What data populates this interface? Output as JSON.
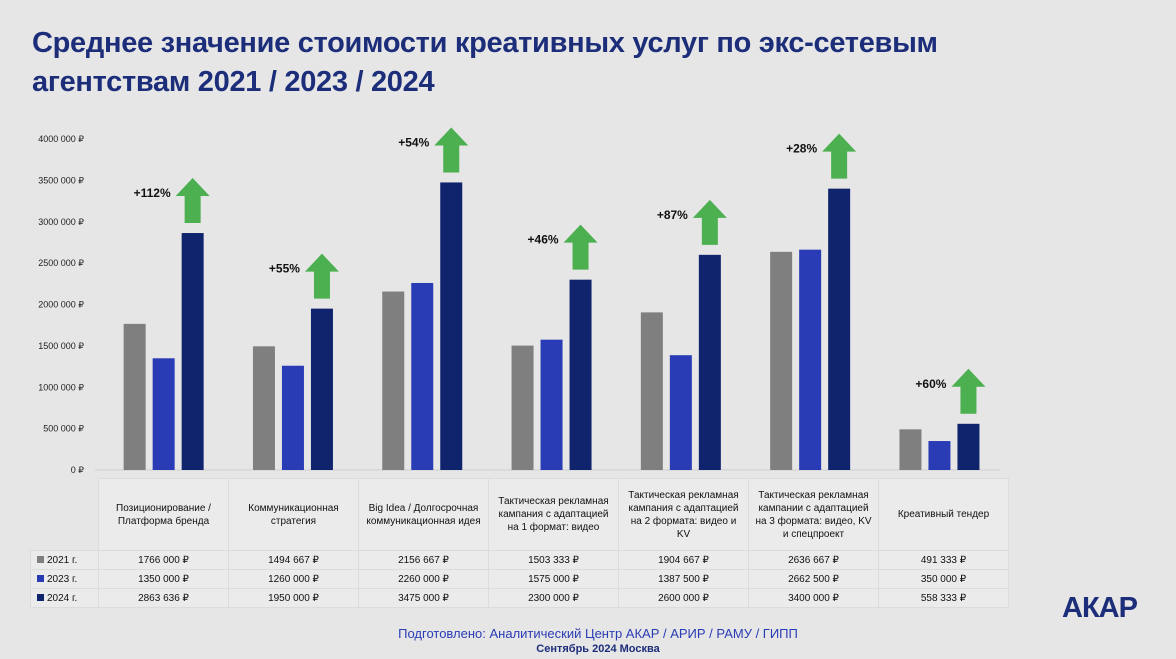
{
  "title": "Среднее значение стоимости креативных услуг по экс-сетевым агентствам 2021 / 2023 / 2024",
  "chart_data": {
    "type": "bar",
    "title": "Среднее значение стоимости креативных услуг по экс-сетевым агентствам 2021 / 2023 / 2024",
    "categories": [
      "Позиционирование / Платформа бренда",
      "Коммуникационная стратегия",
      "Big Idea / Долгосрочная коммуникационная идея",
      "Тактическая рекламная кампания с адаптацией на 1 формат: видео",
      "Тактическая рекламная кампания с адаптацией на 2 формата: видео и KV",
      "Тактическая рекламная кампании с адаптацией на 3 формата: видео, KV и спецпроект",
      "Креативный тендер"
    ],
    "series": [
      {
        "name": "2021 г.",
        "color": "#7f7f7f",
        "values": [
          1766000,
          1494667,
          2156667,
          1503333,
          1904667,
          2636667,
          491333
        ],
        "labels": [
          "1766 000 ₽",
          "1494 667 ₽",
          "2156 667 ₽",
          "1503 333 ₽",
          "1904 667 ₽",
          "2636 667 ₽",
          "491 333 ₽"
        ]
      },
      {
        "name": "2023 г.",
        "color": "#2a3cb5",
        "values": [
          1350000,
          1260000,
          2260000,
          1575000,
          1387500,
          2662500,
          350000
        ],
        "labels": [
          "1350 000 ₽",
          "1260 000 ₽",
          "2260 000 ₽",
          "1575 000 ₽",
          "1387 500 ₽",
          "2662 500 ₽",
          "350 000 ₽"
        ]
      },
      {
        "name": "2024 г.",
        "color": "#10246e",
        "values": [
          2863636,
          1950000,
          3475000,
          2300000,
          2600000,
          3400000,
          558333
        ],
        "labels": [
          "2863 636 ₽",
          "1950 000 ₽",
          "3475 000 ₽",
          "2300 000 ₽",
          "2600 000 ₽",
          "3400 000 ₽",
          "558 333 ₽"
        ]
      }
    ],
    "growth_labels": [
      "+112%",
      "+55%",
      "+54%",
      "+46%",
      "+87%",
      "+28%",
      "+60%"
    ],
    "growth_color": "#4caf50",
    "ylim": [
      0,
      4000000
    ],
    "yticks": [
      0,
      500000,
      1000000,
      1500000,
      2000000,
      2500000,
      3000000,
      3500000,
      4000000
    ],
    "ytick_labels": [
      "0 ₽",
      "500 000 ₽",
      "1000 000 ₽",
      "1500 000 ₽",
      "2000 000 ₽",
      "2500 000 ₽",
      "3000 000 ₽",
      "3500 000 ₽",
      "4000 000 ₽"
    ],
    "grid": false,
    "legend": "data-table-bottom"
  },
  "footer": {
    "line1": "Подготовлено: Аналитический Центр АКАР / АРИР / РАМУ / ГИПП",
    "line2": "Сентябрь 2024 Москва"
  },
  "logo": "АКАР"
}
